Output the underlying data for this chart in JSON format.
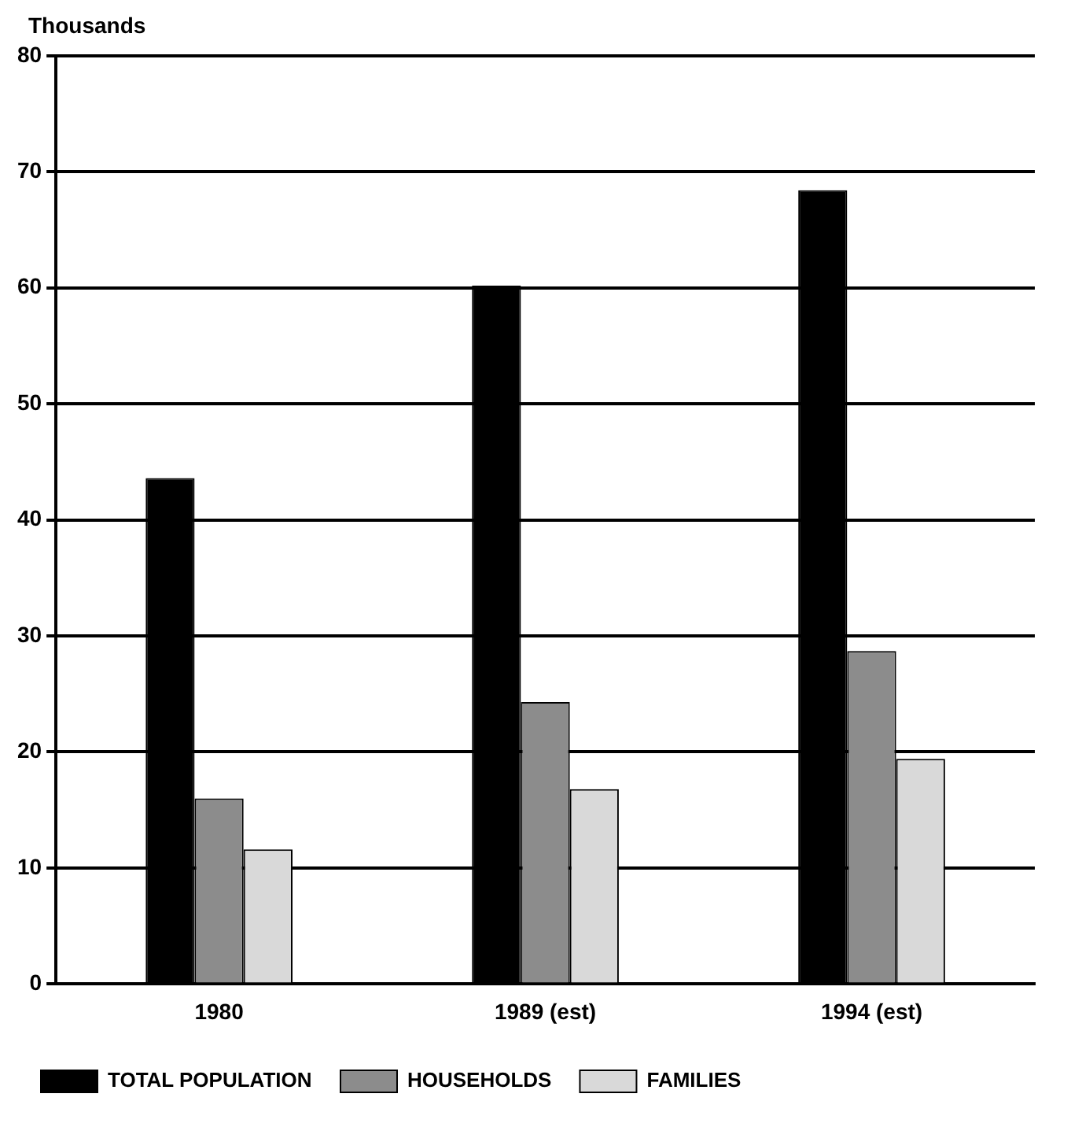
{
  "chart_data": {
    "type": "bar",
    "ylabel": "Thousands",
    "categories": [
      "1980",
      "1989 (est)",
      "1994 (est)"
    ],
    "series": [
      {
        "name": "TOTAL POPULATION",
        "color": "#000000",
        "values": [
          43.6,
          60.2,
          68.4
        ]
      },
      {
        "name": "HOUSEHOLDS",
        "color": "#8c8c8c",
        "values": [
          16.0,
          24.3,
          28.7
        ]
      },
      {
        "name": "FAMILIES",
        "color": "#d9d9d9",
        "values": [
          11.6,
          16.8,
          19.4
        ]
      }
    ],
    "ylim": [
      0,
      80
    ],
    "yticks": [
      0,
      10,
      20,
      30,
      40,
      50,
      60,
      70,
      80
    ],
    "grid": "y",
    "legend": "bottom"
  }
}
